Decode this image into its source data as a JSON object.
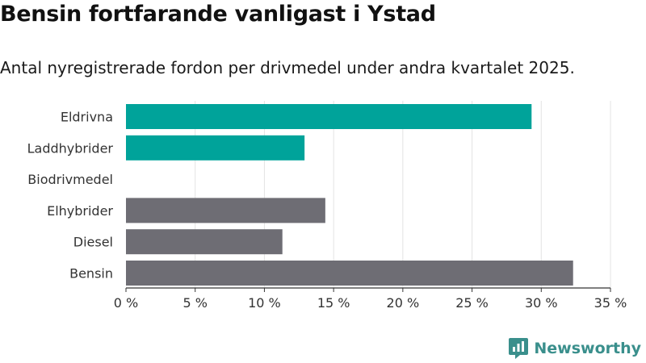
{
  "title": "Bensin fortfarande vanligast i Ystad",
  "subtitle": "Antal nyregistrerade fordon per drivmedel under andra kvartalet 2025.",
  "brand": {
    "name": "Newsworthy",
    "icon": "newsworthy-logo-icon",
    "color": "#3a8f8c"
  },
  "colors": {
    "highlight": "#00a39a",
    "default": "#6e6d74",
    "grid": "#e3e3e3",
    "axis": "#333333"
  },
  "chart_data": {
    "type": "bar",
    "orientation": "horizontal",
    "categories": [
      "Eldrivna",
      "Laddhybrider",
      "Biodrivmedel",
      "Elhybrider",
      "Diesel",
      "Bensin"
    ],
    "values": [
      29.3,
      12.9,
      0,
      14.4,
      11.3,
      32.3
    ],
    "highlighted": [
      "Eldrivna",
      "Laddhybrider"
    ],
    "xlim": [
      0,
      35
    ],
    "xticks": [
      0,
      5,
      10,
      15,
      20,
      25,
      30,
      35
    ],
    "xtick_labels": [
      "0 %",
      "5 %",
      "10 %",
      "15 %",
      "20 %",
      "25 %",
      "30 %",
      "35 %"
    ],
    "grid": true,
    "legend": "none"
  }
}
